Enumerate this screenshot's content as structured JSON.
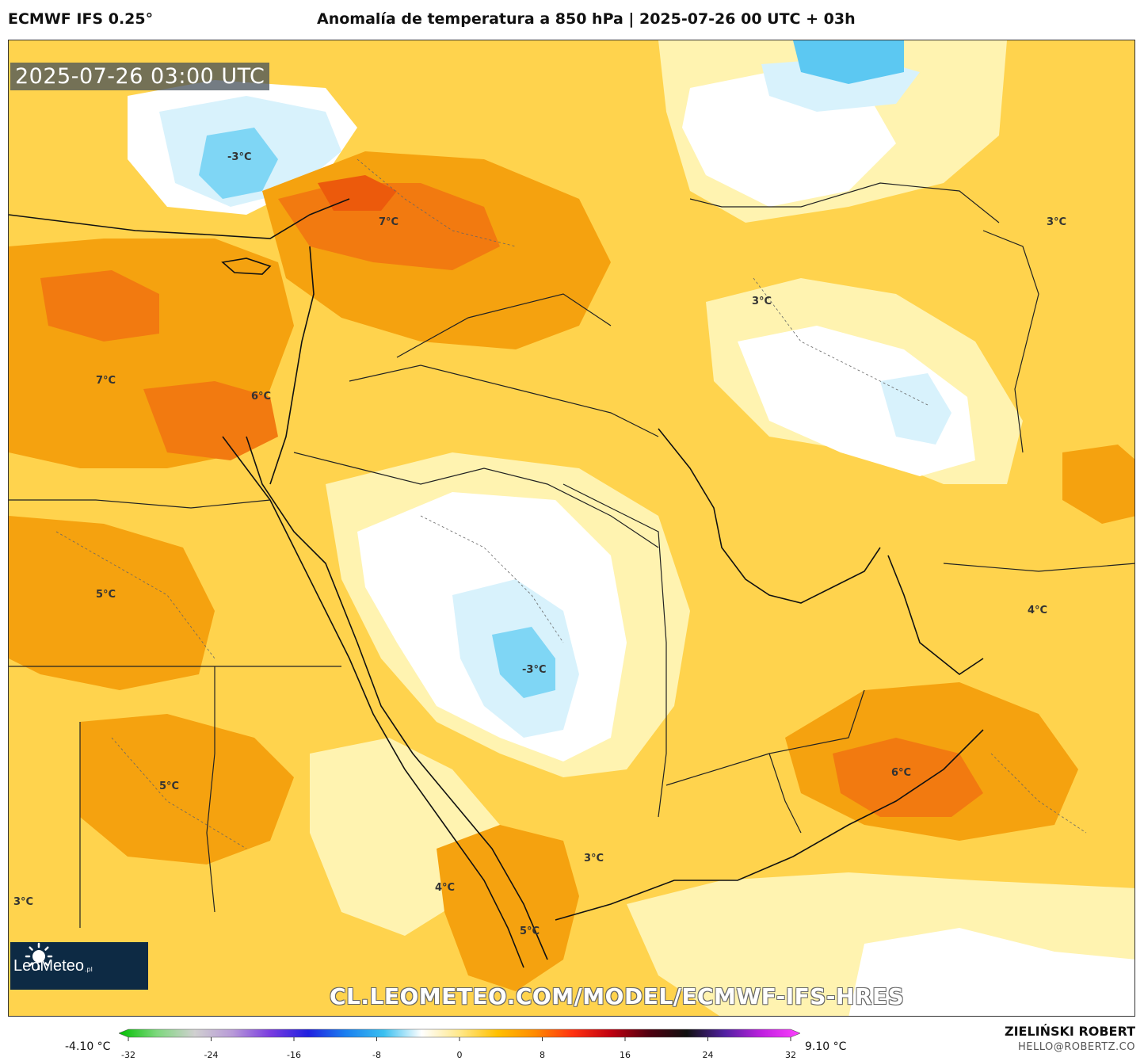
{
  "header": {
    "model": "ECMWF IFS 0.25°",
    "title": "Anomalía de temperatura a 850 hPa | 2025-07-26 00 UTC + 03h"
  },
  "map": {
    "valid_time": "2025-07-26 03:00 UTC",
    "watermark": "CL.LEOMETEO.COM/MODEL/ECMWF-IFS-HRES",
    "logo_text": "LeoMeteo",
    "logo_tld": ".pl",
    "labels": [
      {
        "text": "-3°C"
      },
      {
        "text": "7°C"
      },
      {
        "text": "7°C"
      },
      {
        "text": "6°C"
      },
      {
        "text": "3°C"
      },
      {
        "text": "3°C"
      },
      {
        "text": "5°C"
      },
      {
        "text": "-3°C"
      },
      {
        "text": "4°C"
      },
      {
        "text": "5°C"
      },
      {
        "text": "6°C"
      },
      {
        "text": "3°C"
      },
      {
        "text": "4°C"
      },
      {
        "text": "5°C"
      },
      {
        "text": "3°C"
      }
    ],
    "colors": {
      "warm_orange": "#f5a20f",
      "warm_light": "#ffd84a",
      "warm_pale": "#fff3b0",
      "cold_light": "#d8f2fc",
      "cold_blue": "#7fd6f5",
      "hot_orange": "#f27a10"
    }
  },
  "legend": {
    "min_label": "-4.10 °C",
    "max_label": "9.10 °C",
    "ticks": [
      "-32",
      "-24",
      "-16",
      "-8",
      "0",
      "8",
      "16",
      "24",
      "32"
    ],
    "colors": [
      "#00c000",
      "#7dd87d",
      "#d0d0d0",
      "#b89ad8",
      "#7a3ce0",
      "#2020e0",
      "#1a80f0",
      "#3ac0f0",
      "#ffffff",
      "#ffe88a",
      "#ffc000",
      "#ff8a00",
      "#ff3010",
      "#c00010",
      "#500010",
      "#101010",
      "#5020a0",
      "#c020e0",
      "#ff40ff"
    ]
  },
  "credit": {
    "author": "ZIELIŃSKI ROBERT",
    "email": "HELLO@ROBERTZ.CO"
  }
}
